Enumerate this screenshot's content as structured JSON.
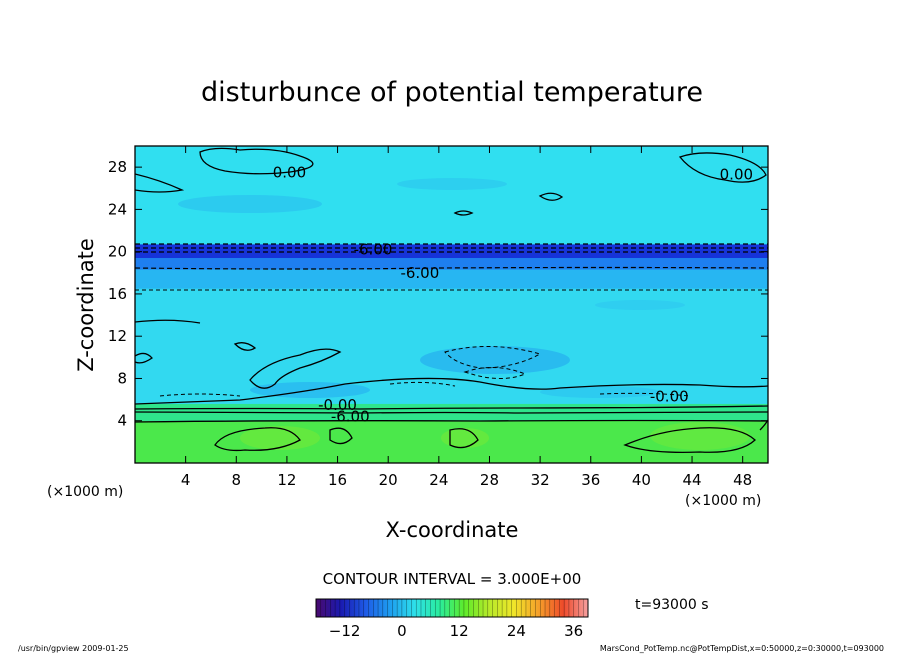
{
  "chart_data": {
    "type": "heatmap",
    "title": "disturbunce of potential temperature",
    "xlabel": "X-coordinate",
    "ylabel": "Z-coordinate",
    "x_units": "(×1000 m)",
    "y_units": "(×1000 m)",
    "xlim": [
      0,
      50
    ],
    "ylim": [
      0,
      30
    ],
    "x_ticks": [
      4,
      8,
      12,
      16,
      20,
      24,
      28,
      32,
      36,
      40,
      44,
      48
    ],
    "y_ticks": [
      4,
      8,
      12,
      16,
      20,
      24,
      28
    ],
    "contour_interval_text": "CONTOUR INTERVAL = 3.000E+00",
    "time_text": "t=93000 s",
    "contour_labels": [
      {
        "text": "0.00",
        "x": 12.2,
        "z": 27.5
      },
      {
        "text": "0.00",
        "x": 47.5,
        "z": 27.3
      },
      {
        "text": "-6.00",
        "x": 18.8,
        "z": 20.2
      },
      {
        "text": "-6.00",
        "x": 22.5,
        "z": 18.0
      },
      {
        "text": "-0.00",
        "x": 16.0,
        "z": 5.5
      },
      {
        "text": "-6.00",
        "x": 17.0,
        "z": 4.4
      },
      {
        "text": "-0.00",
        "x": 42.2,
        "z": 6.3
      }
    ],
    "colorbar": {
      "min": -18,
      "max": 39,
      "ticks": [
        -12,
        0,
        12,
        24,
        36
      ],
      "stops": [
        "#4a0a6e",
        "#1a1ab0",
        "#1e5ae6",
        "#1e9ef0",
        "#2ee0ea",
        "#2aec9c",
        "#5eeb2a",
        "#b8ea2a",
        "#f0e62a",
        "#f5a02a",
        "#ee4a2a",
        "#f5a0a0"
      ]
    },
    "field_bands": [
      {
        "z_from": 0,
        "z_to": 4,
        "color": "#4be84b"
      },
      {
        "z_from": 4,
        "z_to": 5.6,
        "color": "#2fe58c"
      },
      {
        "z_from": 5.6,
        "z_to": 16.5,
        "color": "#32d9f0"
      },
      {
        "z_from": 16.5,
        "z_to": 18.3,
        "color": "#27b6f2"
      },
      {
        "z_from": 18.3,
        "z_to": 19.4,
        "color": "#1e7ff0"
      },
      {
        "z_from": 19.4,
        "z_to": 20.7,
        "color": "#1633d8"
      },
      {
        "z_from": 20.7,
        "z_to": 30,
        "color": "#30dff0"
      }
    ]
  },
  "footer": {
    "left": "/usr/bin/gpview   2009-01-25",
    "right": "MarsCond_PotTemp.nc@PotTempDist,x=0:50000,z=0:30000,t=093000"
  }
}
